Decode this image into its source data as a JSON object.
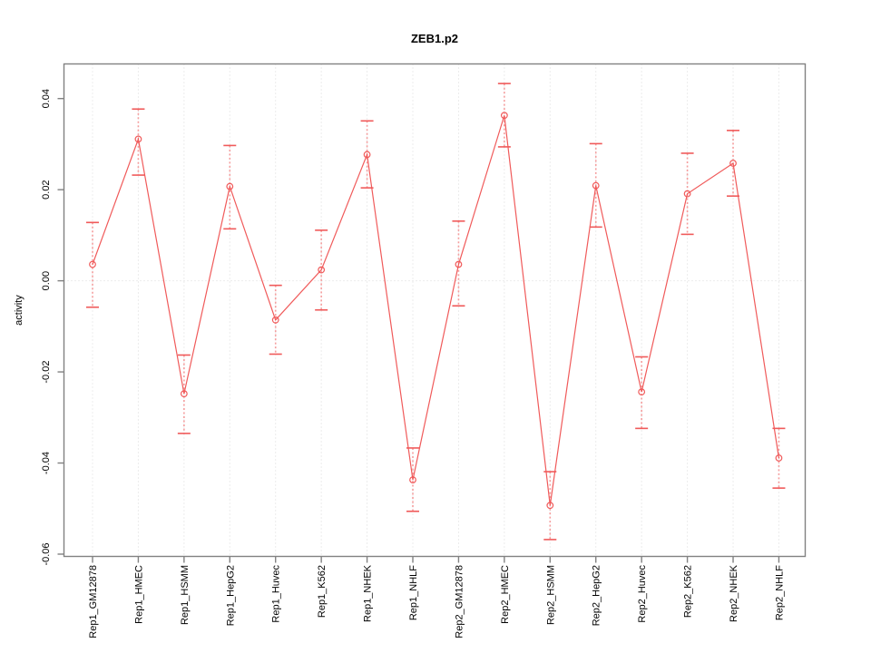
{
  "figure": {
    "background": "#ffffff"
  },
  "chart_data": {
    "type": "line",
    "title": "ZEB1.p2",
    "xlabel": "",
    "ylabel": "activity",
    "marker": "open-circle",
    "legend": "none",
    "grid": {
      "vertical_dotted": true,
      "zero_line_dotted": true
    },
    "categories": [
      "Rep1_GM12878",
      "Rep1_HMEC",
      "Rep1_HSMM",
      "Rep1_HepG2",
      "Rep1_Huvec",
      "Rep1_K562",
      "Rep1_NHEK",
      "Rep1_NHLF",
      "Rep2_GM12878",
      "Rep2_HMEC",
      "Rep2_HSMM",
      "Rep2_HepG2",
      "Rep2_Huvec",
      "Rep2_K562",
      "Rep2_NHEK",
      "Rep2_NHLF"
    ],
    "series": [
      {
        "name": "activity",
        "values": [
          0.0036,
          0.0311,
          -0.0248,
          0.0207,
          -0.0086,
          0.0024,
          0.0277,
          -0.0437,
          0.0036,
          0.0363,
          -0.0493,
          0.0209,
          -0.0244,
          0.0191,
          0.0258,
          -0.0389
        ],
        "error_low": [
          -0.0058,
          0.0232,
          -0.0335,
          0.0114,
          -0.0161,
          -0.0064,
          0.0204,
          -0.0506,
          -0.0055,
          0.0294,
          -0.0568,
          0.0118,
          -0.0324,
          0.0102,
          0.0186,
          -0.0455
        ],
        "error_high": [
          0.0128,
          0.0377,
          -0.0163,
          0.0297,
          -0.001,
          0.0111,
          0.0351,
          -0.0367,
          0.0131,
          0.0433,
          -0.0419,
          0.0301,
          -0.0167,
          0.028,
          0.033,
          -0.0324
        ]
      }
    ],
    "yticks": [
      0.04,
      0.02,
      0.0,
      -0.02,
      -0.04,
      -0.06
    ],
    "ytick_labels": [
      "0.04",
      "0.02",
      "0.00",
      "-0.02",
      "-0.04",
      "-0.06"
    ],
    "ylim": [
      -0.0605,
      0.0476
    ],
    "colors": {
      "line": "#f05a5a",
      "marker": "#f05a5a",
      "error_cap": "#f05a5a",
      "error_stem": "#f59d9d",
      "gridline": "#d9d9d9",
      "axis": "#818181",
      "text": "#000000"
    }
  }
}
